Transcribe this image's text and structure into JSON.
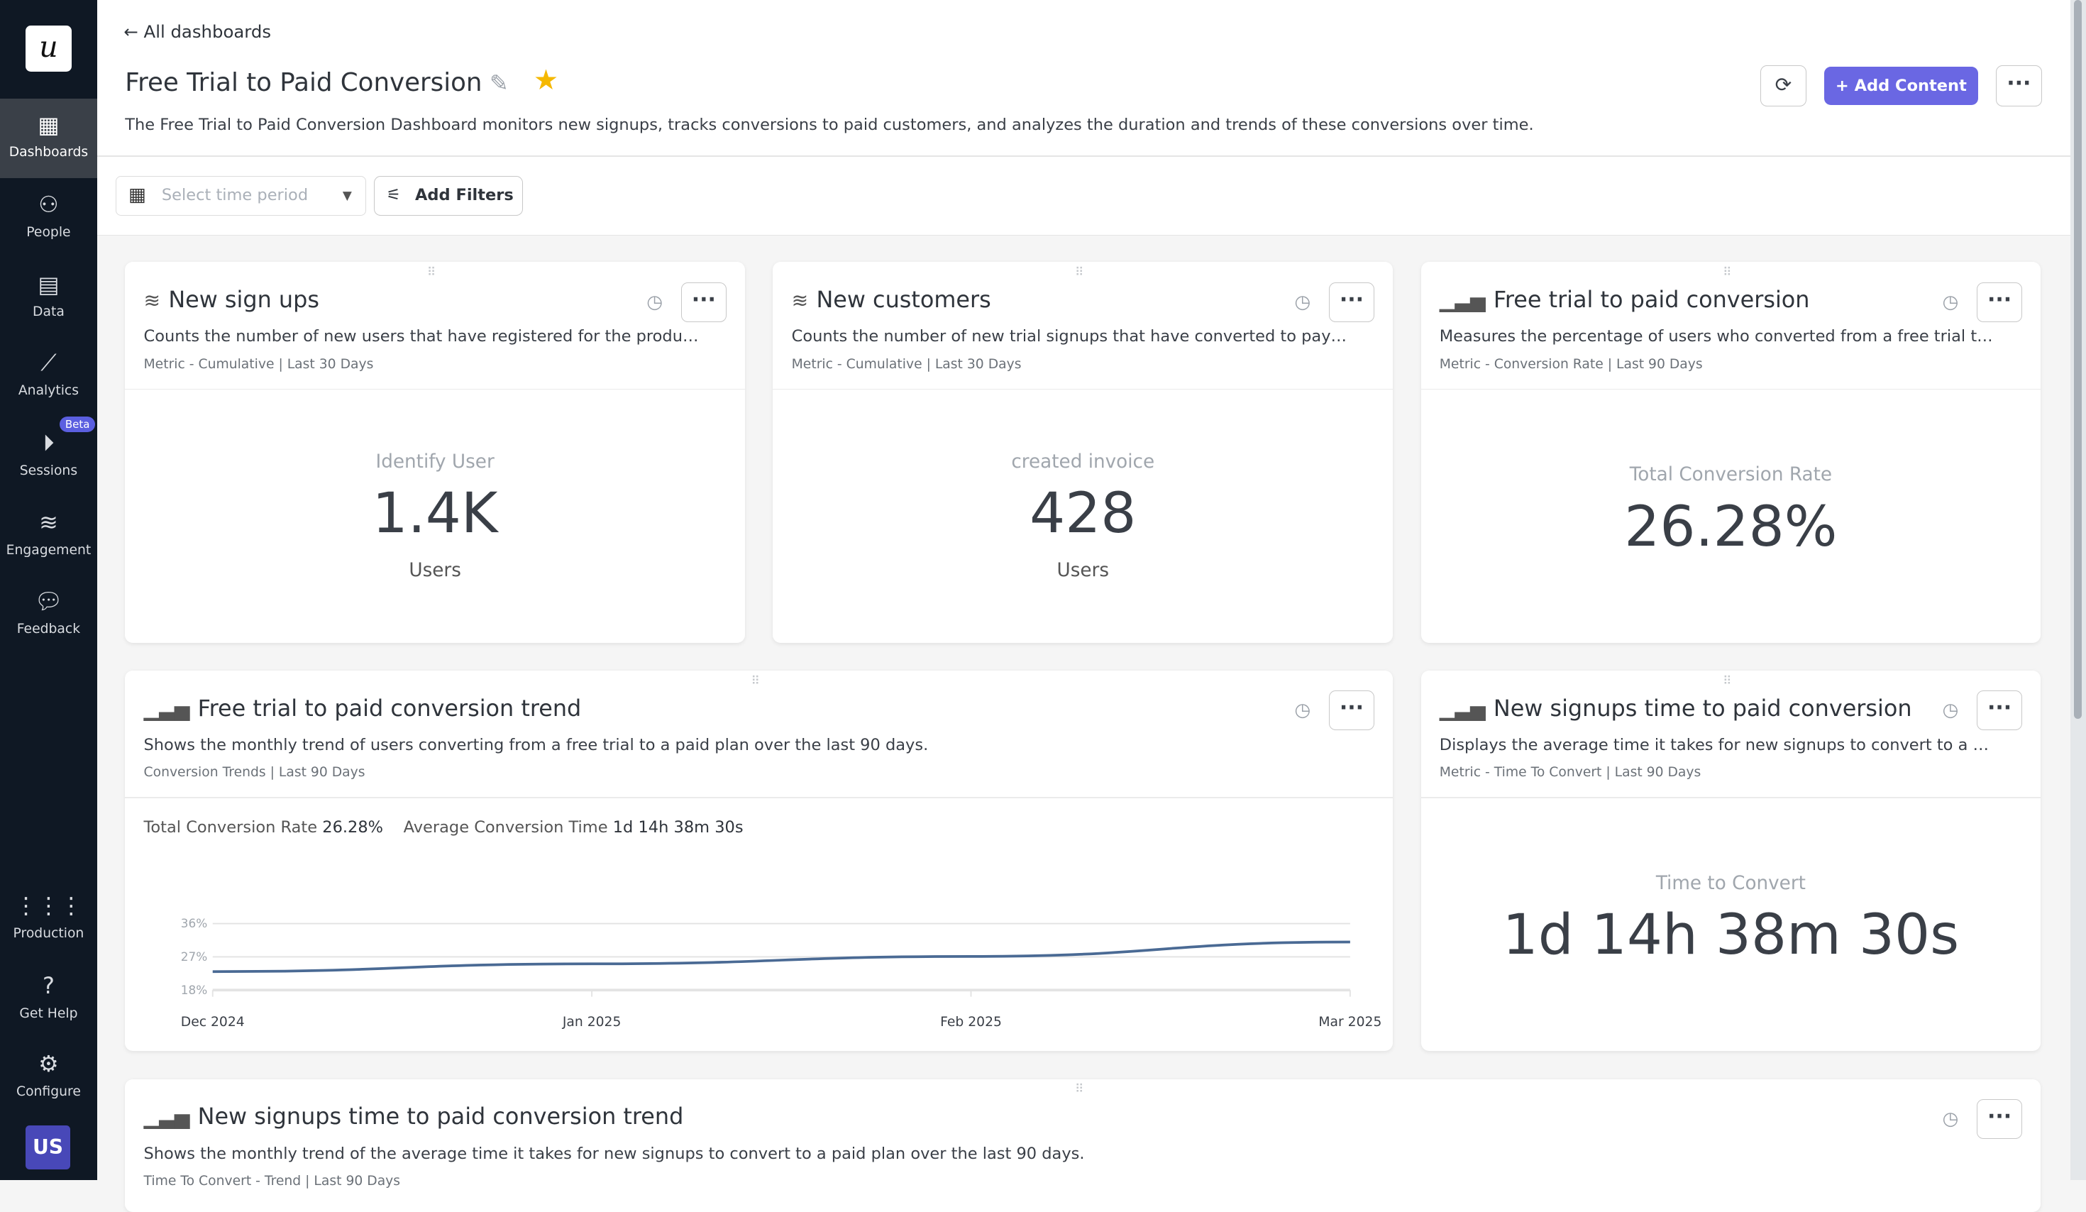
{
  "sidebar": {
    "logo": "u",
    "items": [
      {
        "label": "Dashboards",
        "icon": "dashboard-icon"
      },
      {
        "label": "People",
        "icon": "people-icon"
      },
      {
        "label": "Data",
        "icon": "data-icon"
      },
      {
        "label": "Analytics",
        "icon": "analytics-icon"
      },
      {
        "label": "Sessions",
        "icon": "play-icon",
        "badge": "Beta"
      },
      {
        "label": "Engagement",
        "icon": "layers-icon"
      },
      {
        "label": "Feedback",
        "icon": "chat-icon"
      },
      {
        "label": "Production",
        "icon": "grid-icon"
      },
      {
        "label": "Get Help",
        "icon": "help-icon"
      },
      {
        "label": "Configure",
        "icon": "gear-icon"
      }
    ],
    "avatar": "US"
  },
  "header": {
    "back": "All dashboards",
    "title": "Free Trial to Paid Conversion",
    "description": "The Free Trial to Paid Conversion Dashboard monitors new signups, tracks conversions to paid customers, and analyzes the duration and trends of these conversions over time.",
    "add_content": "Add Content",
    "accent": "#6a67e3"
  },
  "filters": {
    "time_placeholder": "Select time period",
    "add_filters": "Add Filters"
  },
  "cards": [
    {
      "title": "New sign ups",
      "desc": "Counts the number of new users that have registered for the product in t...",
      "meta": "Metric - Cumulative | Last 30 Days",
      "label": "Identify User",
      "value": "1.4K",
      "unit": "Users"
    },
    {
      "title": "New customers",
      "desc": "Counts the number of new trial signups that have converted to paying cu...",
      "meta": "Metric - Cumulative | Last 30 Days",
      "label": "created invoice",
      "value": "428",
      "unit": "Users"
    },
    {
      "title": "Free trial to paid conversion",
      "desc": "Measures the percentage of users who converted from a free trial to a pa...",
      "meta": "Metric - Conversion Rate | Last 90 Days",
      "label": "Total Conversion Rate",
      "value": "26.28%"
    },
    {
      "title": "Free trial to paid conversion trend",
      "desc": "Shows the monthly trend of users converting from a free trial to a paid plan over the last 90 days.",
      "meta": "Conversion Trends | Last 90 Days",
      "summary_rate_label": "Total Conversion Rate",
      "summary_rate": "26.28%",
      "summary_time_label": "Average Conversion Time",
      "summary_time": "1d 14h 38m 30s"
    },
    {
      "title": "New signups time to paid conversion",
      "desc": "Displays the average time it takes for new signups to convert to a paid pl...",
      "meta": "Metric - Time To Convert | Last 90 Days",
      "label": "Time to Convert",
      "value": "1d 14h 38m 30s"
    },
    {
      "title": "New signups time to paid conversion trend",
      "desc": "Shows the monthly trend of the average time it takes for new signups to convert to a paid plan over the last 90 days.",
      "meta": "Time To Convert - Trend | Last 90 Days"
    }
  ],
  "chart_data": {
    "type": "line",
    "x": [
      "Dec 2024",
      "Jan 2025",
      "Feb 2025",
      "Mar 2025"
    ],
    "series": [
      {
        "values": [
          23,
          25.1,
          27.1,
          31
        ],
        "color": "#4a6a94"
      }
    ],
    "yticks": [
      "36%",
      "27%",
      "18%"
    ],
    "ylim": [
      18,
      36
    ],
    "grid": true
  }
}
